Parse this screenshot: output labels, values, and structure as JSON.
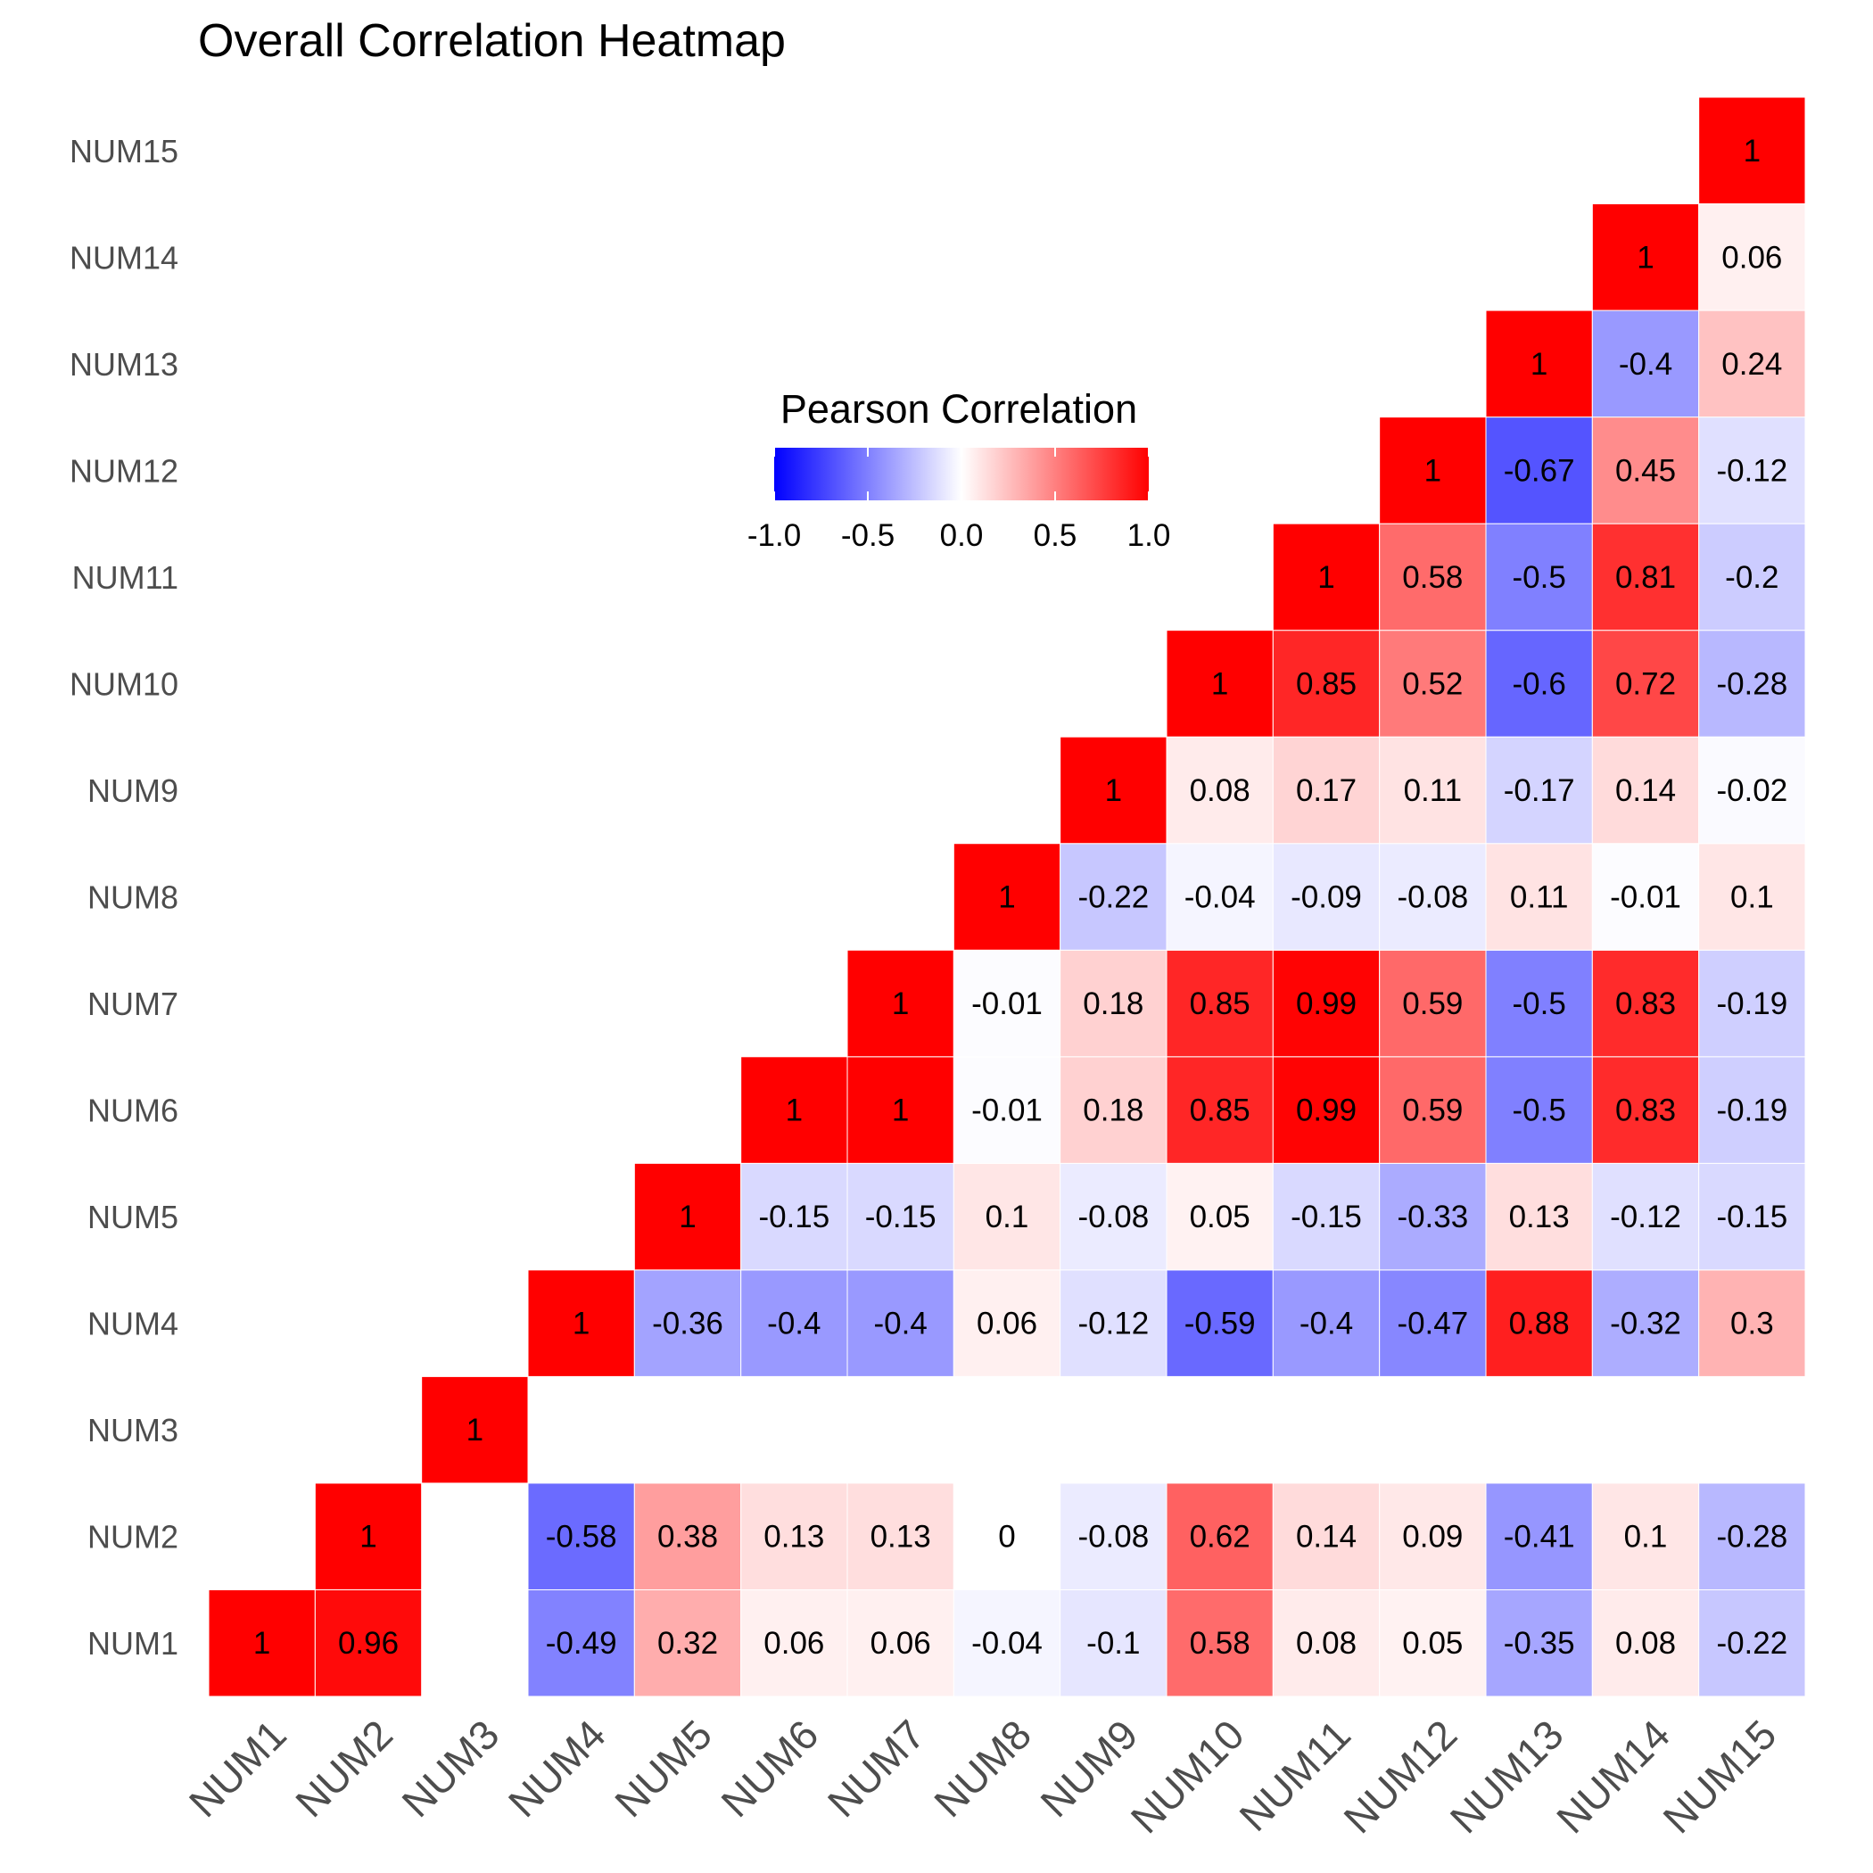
{
  "chart_data": {
    "type": "heatmap",
    "title": "Overall Correlation Heatmap",
    "variables": [
      "NUM1",
      "NUM2",
      "NUM3",
      "NUM4",
      "NUM5",
      "NUM6",
      "NUM7",
      "NUM8",
      "NUM9",
      "NUM10",
      "NUM11",
      "NUM12",
      "NUM13",
      "NUM14",
      "NUM15"
    ],
    "upper_triangle_only": true,
    "cells": [
      {
        "x": "NUM1",
        "y": "NUM1",
        "value": 1,
        "label": "1"
      },
      {
        "x": "NUM2",
        "y": "NUM1",
        "value": 0.96,
        "label": "0.96"
      },
      {
        "x": "NUM4",
        "y": "NUM1",
        "value": -0.49,
        "label": "-0.49"
      },
      {
        "x": "NUM5",
        "y": "NUM1",
        "value": 0.32,
        "label": "0.32"
      },
      {
        "x": "NUM6",
        "y": "NUM1",
        "value": 0.06,
        "label": "0.06"
      },
      {
        "x": "NUM7",
        "y": "NUM1",
        "value": 0.06,
        "label": "0.06"
      },
      {
        "x": "NUM8",
        "y": "NUM1",
        "value": -0.04,
        "label": "-0.04"
      },
      {
        "x": "NUM9",
        "y": "NUM1",
        "value": -0.1,
        "label": "-0.1"
      },
      {
        "x": "NUM10",
        "y": "NUM1",
        "value": 0.58,
        "label": "0.58"
      },
      {
        "x": "NUM11",
        "y": "NUM1",
        "value": 0.08,
        "label": "0.08"
      },
      {
        "x": "NUM12",
        "y": "NUM1",
        "value": 0.05,
        "label": "0.05"
      },
      {
        "x": "NUM13",
        "y": "NUM1",
        "value": -0.35,
        "label": "-0.35"
      },
      {
        "x": "NUM14",
        "y": "NUM1",
        "value": 0.08,
        "label": "0.08"
      },
      {
        "x": "NUM15",
        "y": "NUM1",
        "value": -0.22,
        "label": "-0.22"
      },
      {
        "x": "NUM2",
        "y": "NUM2",
        "value": 1,
        "label": "1"
      },
      {
        "x": "NUM4",
        "y": "NUM2",
        "value": -0.58,
        "label": "-0.58"
      },
      {
        "x": "NUM5",
        "y": "NUM2",
        "value": 0.38,
        "label": "0.38"
      },
      {
        "x": "NUM6",
        "y": "NUM2",
        "value": 0.13,
        "label": "0.13"
      },
      {
        "x": "NUM7",
        "y": "NUM2",
        "value": 0.13,
        "label": "0.13"
      },
      {
        "x": "NUM8",
        "y": "NUM2",
        "value": 0,
        "label": "0"
      },
      {
        "x": "NUM9",
        "y": "NUM2",
        "value": -0.08,
        "label": "-0.08"
      },
      {
        "x": "NUM10",
        "y": "NUM2",
        "value": 0.62,
        "label": "0.62"
      },
      {
        "x": "NUM11",
        "y": "NUM2",
        "value": 0.14,
        "label": "0.14"
      },
      {
        "x": "NUM12",
        "y": "NUM2",
        "value": 0.09,
        "label": "0.09"
      },
      {
        "x": "NUM13",
        "y": "NUM2",
        "value": -0.41,
        "label": "-0.41"
      },
      {
        "x": "NUM14",
        "y": "NUM2",
        "value": 0.1,
        "label": "0.1"
      },
      {
        "x": "NUM15",
        "y": "NUM2",
        "value": -0.28,
        "label": "-0.28"
      },
      {
        "x": "NUM3",
        "y": "NUM3",
        "value": 1,
        "label": "1"
      },
      {
        "x": "NUM4",
        "y": "NUM4",
        "value": 1,
        "label": "1"
      },
      {
        "x": "NUM5",
        "y": "NUM4",
        "value": -0.36,
        "label": "-0.36"
      },
      {
        "x": "NUM6",
        "y": "NUM4",
        "value": -0.4,
        "label": "-0.4"
      },
      {
        "x": "NUM7",
        "y": "NUM4",
        "value": -0.4,
        "label": "-0.4"
      },
      {
        "x": "NUM8",
        "y": "NUM4",
        "value": 0.06,
        "label": "0.06"
      },
      {
        "x": "NUM9",
        "y": "NUM4",
        "value": -0.12,
        "label": "-0.12"
      },
      {
        "x": "NUM10",
        "y": "NUM4",
        "value": -0.59,
        "label": "-0.59"
      },
      {
        "x": "NUM11",
        "y": "NUM4",
        "value": -0.4,
        "label": "-0.4"
      },
      {
        "x": "NUM12",
        "y": "NUM4",
        "value": -0.47,
        "label": "-0.47"
      },
      {
        "x": "NUM13",
        "y": "NUM4",
        "value": 0.88,
        "label": "0.88"
      },
      {
        "x": "NUM14",
        "y": "NUM4",
        "value": -0.32,
        "label": "-0.32"
      },
      {
        "x": "NUM15",
        "y": "NUM4",
        "value": 0.3,
        "label": "0.3"
      },
      {
        "x": "NUM5",
        "y": "NUM5",
        "value": 1,
        "label": "1"
      },
      {
        "x": "NUM6",
        "y": "NUM5",
        "value": -0.15,
        "label": "-0.15"
      },
      {
        "x": "NUM7",
        "y": "NUM5",
        "value": -0.15,
        "label": "-0.15"
      },
      {
        "x": "NUM8",
        "y": "NUM5",
        "value": 0.1,
        "label": "0.1"
      },
      {
        "x": "NUM9",
        "y": "NUM5",
        "value": -0.08,
        "label": "-0.08"
      },
      {
        "x": "NUM10",
        "y": "NUM5",
        "value": 0.05,
        "label": "0.05"
      },
      {
        "x": "NUM11",
        "y": "NUM5",
        "value": -0.15,
        "label": "-0.15"
      },
      {
        "x": "NUM12",
        "y": "NUM5",
        "value": -0.33,
        "label": "-0.33"
      },
      {
        "x": "NUM13",
        "y": "NUM5",
        "value": 0.13,
        "label": "0.13"
      },
      {
        "x": "NUM14",
        "y": "NUM5",
        "value": -0.12,
        "label": "-0.12"
      },
      {
        "x": "NUM15",
        "y": "NUM5",
        "value": -0.15,
        "label": "-0.15"
      },
      {
        "x": "NUM6",
        "y": "NUM6",
        "value": 1,
        "label": "1"
      },
      {
        "x": "NUM7",
        "y": "NUM6",
        "value": 1,
        "label": "1"
      },
      {
        "x": "NUM8",
        "y": "NUM6",
        "value": -0.01,
        "label": "-0.01"
      },
      {
        "x": "NUM9",
        "y": "NUM6",
        "value": 0.18,
        "label": "0.18"
      },
      {
        "x": "NUM10",
        "y": "NUM6",
        "value": 0.85,
        "label": "0.85"
      },
      {
        "x": "NUM11",
        "y": "NUM6",
        "value": 0.99,
        "label": "0.99"
      },
      {
        "x": "NUM12",
        "y": "NUM6",
        "value": 0.59,
        "label": "0.59"
      },
      {
        "x": "NUM13",
        "y": "NUM6",
        "value": -0.5,
        "label": "-0.5"
      },
      {
        "x": "NUM14",
        "y": "NUM6",
        "value": 0.83,
        "label": "0.83"
      },
      {
        "x": "NUM15",
        "y": "NUM6",
        "value": -0.19,
        "label": "-0.19"
      },
      {
        "x": "NUM7",
        "y": "NUM7",
        "value": 1,
        "label": "1"
      },
      {
        "x": "NUM8",
        "y": "NUM7",
        "value": -0.01,
        "label": "-0.01"
      },
      {
        "x": "NUM9",
        "y": "NUM7",
        "value": 0.18,
        "label": "0.18"
      },
      {
        "x": "NUM10",
        "y": "NUM7",
        "value": 0.85,
        "label": "0.85"
      },
      {
        "x": "NUM11",
        "y": "NUM7",
        "value": 0.99,
        "label": "0.99"
      },
      {
        "x": "NUM12",
        "y": "NUM7",
        "value": 0.59,
        "label": "0.59"
      },
      {
        "x": "NUM13",
        "y": "NUM7",
        "value": -0.5,
        "label": "-0.5"
      },
      {
        "x": "NUM14",
        "y": "NUM7",
        "value": 0.83,
        "label": "0.83"
      },
      {
        "x": "NUM15",
        "y": "NUM7",
        "value": -0.19,
        "label": "-0.19"
      },
      {
        "x": "NUM8",
        "y": "NUM8",
        "value": 1,
        "label": "1"
      },
      {
        "x": "NUM9",
        "y": "NUM8",
        "value": -0.22,
        "label": "-0.22"
      },
      {
        "x": "NUM10",
        "y": "NUM8",
        "value": -0.04,
        "label": "-0.04"
      },
      {
        "x": "NUM11",
        "y": "NUM8",
        "value": -0.09,
        "label": "-0.09"
      },
      {
        "x": "NUM12",
        "y": "NUM8",
        "value": -0.08,
        "label": "-0.08"
      },
      {
        "x": "NUM13",
        "y": "NUM8",
        "value": 0.11,
        "label": "0.11"
      },
      {
        "x": "NUM14",
        "y": "NUM8",
        "value": -0.01,
        "label": "-0.01"
      },
      {
        "x": "NUM15",
        "y": "NUM8",
        "value": 0.1,
        "label": "0.1"
      },
      {
        "x": "NUM9",
        "y": "NUM9",
        "value": 1,
        "label": "1"
      },
      {
        "x": "NUM10",
        "y": "NUM9",
        "value": 0.08,
        "label": "0.08"
      },
      {
        "x": "NUM11",
        "y": "NUM9",
        "value": 0.17,
        "label": "0.17"
      },
      {
        "x": "NUM12",
        "y": "NUM9",
        "value": 0.11,
        "label": "0.11"
      },
      {
        "x": "NUM13",
        "y": "NUM9",
        "value": -0.17,
        "label": "-0.17"
      },
      {
        "x": "NUM14",
        "y": "NUM9",
        "value": 0.14,
        "label": "0.14"
      },
      {
        "x": "NUM15",
        "y": "NUM9",
        "value": -0.02,
        "label": "-0.02"
      },
      {
        "x": "NUM10",
        "y": "NUM10",
        "value": 1,
        "label": "1"
      },
      {
        "x": "NUM11",
        "y": "NUM10",
        "value": 0.85,
        "label": "0.85"
      },
      {
        "x": "NUM12",
        "y": "NUM10",
        "value": 0.52,
        "label": "0.52"
      },
      {
        "x": "NUM13",
        "y": "NUM10",
        "value": -0.6,
        "label": "-0.6"
      },
      {
        "x": "NUM14",
        "y": "NUM10",
        "value": 0.72,
        "label": "0.72"
      },
      {
        "x": "NUM15",
        "y": "NUM10",
        "value": -0.28,
        "label": "-0.28"
      },
      {
        "x": "NUM11",
        "y": "NUM11",
        "value": 1,
        "label": "1"
      },
      {
        "x": "NUM12",
        "y": "NUM11",
        "value": 0.58,
        "label": "0.58"
      },
      {
        "x": "NUM13",
        "y": "NUM11",
        "value": -0.5,
        "label": "-0.5"
      },
      {
        "x": "NUM14",
        "y": "NUM11",
        "value": 0.81,
        "label": "0.81"
      },
      {
        "x": "NUM15",
        "y": "NUM11",
        "value": -0.2,
        "label": "-0.2"
      },
      {
        "x": "NUM12",
        "y": "NUM12",
        "value": 1,
        "label": "1"
      },
      {
        "x": "NUM13",
        "y": "NUM12",
        "value": -0.67,
        "label": "-0.67"
      },
      {
        "x": "NUM14",
        "y": "NUM12",
        "value": 0.45,
        "label": "0.45"
      },
      {
        "x": "NUM15",
        "y": "NUM12",
        "value": -0.12,
        "label": "-0.12"
      },
      {
        "x": "NUM13",
        "y": "NUM13",
        "value": 1,
        "label": "1"
      },
      {
        "x": "NUM14",
        "y": "NUM13",
        "value": -0.4,
        "label": "-0.4"
      },
      {
        "x": "NUM15",
        "y": "NUM13",
        "value": 0.24,
        "label": "0.24"
      },
      {
        "x": "NUM14",
        "y": "NUM14",
        "value": 1,
        "label": "1"
      },
      {
        "x": "NUM15",
        "y": "NUM14",
        "value": 0.06,
        "label": "0.06"
      },
      {
        "x": "NUM15",
        "y": "NUM15",
        "value": 1,
        "label": "1"
      }
    ],
    "legend": {
      "title": "Pearson Correlation",
      "placement": "top-center",
      "range": [
        -1,
        1
      ],
      "ticks": [
        -1,
        -0.5,
        0,
        0.5,
        1
      ],
      "tick_labels": [
        "-1.0",
        "-0.5",
        "0.0",
        "0.5",
        "1.0"
      ]
    },
    "colors": {
      "low": "#0000ff",
      "mid": "#ffffff",
      "high": "#ff0000"
    },
    "grid": false
  }
}
